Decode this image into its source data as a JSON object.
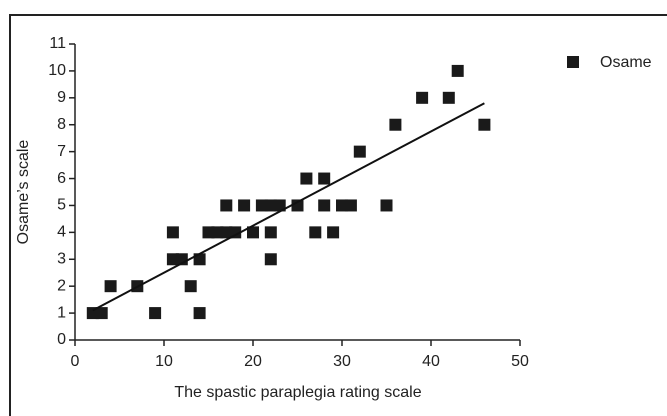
{
  "chart_data": {
    "type": "scatter",
    "xlabel": "The spastic paraplegia rating scale",
    "ylabel": "Osame’s scale",
    "x": [
      2,
      3,
      9,
      14,
      4,
      7,
      13,
      11,
      12,
      14,
      22,
      11,
      15,
      16,
      17,
      18,
      20,
      22,
      27,
      29,
      17,
      19,
      21,
      22,
      23,
      25,
      28,
      30,
      31,
      35,
      26,
      28,
      32,
      36,
      46,
      39,
      42,
      43
    ],
    "series": [
      {
        "name": "Osame",
        "color": "#1a1a1a",
        "values": [
          1,
          1,
          1,
          1,
          2,
          2,
          2,
          3,
          3,
          3,
          3,
          4,
          4,
          4,
          4,
          4,
          4,
          4,
          4,
          4,
          5,
          5,
          5,
          5,
          5,
          5,
          5,
          5,
          5,
          5,
          6,
          6,
          7,
          8,
          8,
          9,
          9,
          10
        ]
      }
    ],
    "trendline": {
      "x": [
        2,
        46
      ],
      "y": [
        1.1,
        8.8
      ]
    },
    "xlim": [
      0,
      50
    ],
    "xticks": [
      0,
      10,
      20,
      30,
      40,
      50
    ],
    "ylim": [
      0,
      11
    ],
    "yticks": [
      0,
      1,
      2,
      3,
      4,
      5,
      6,
      7,
      8,
      9,
      10,
      11
    ],
    "legend": "top-right"
  }
}
